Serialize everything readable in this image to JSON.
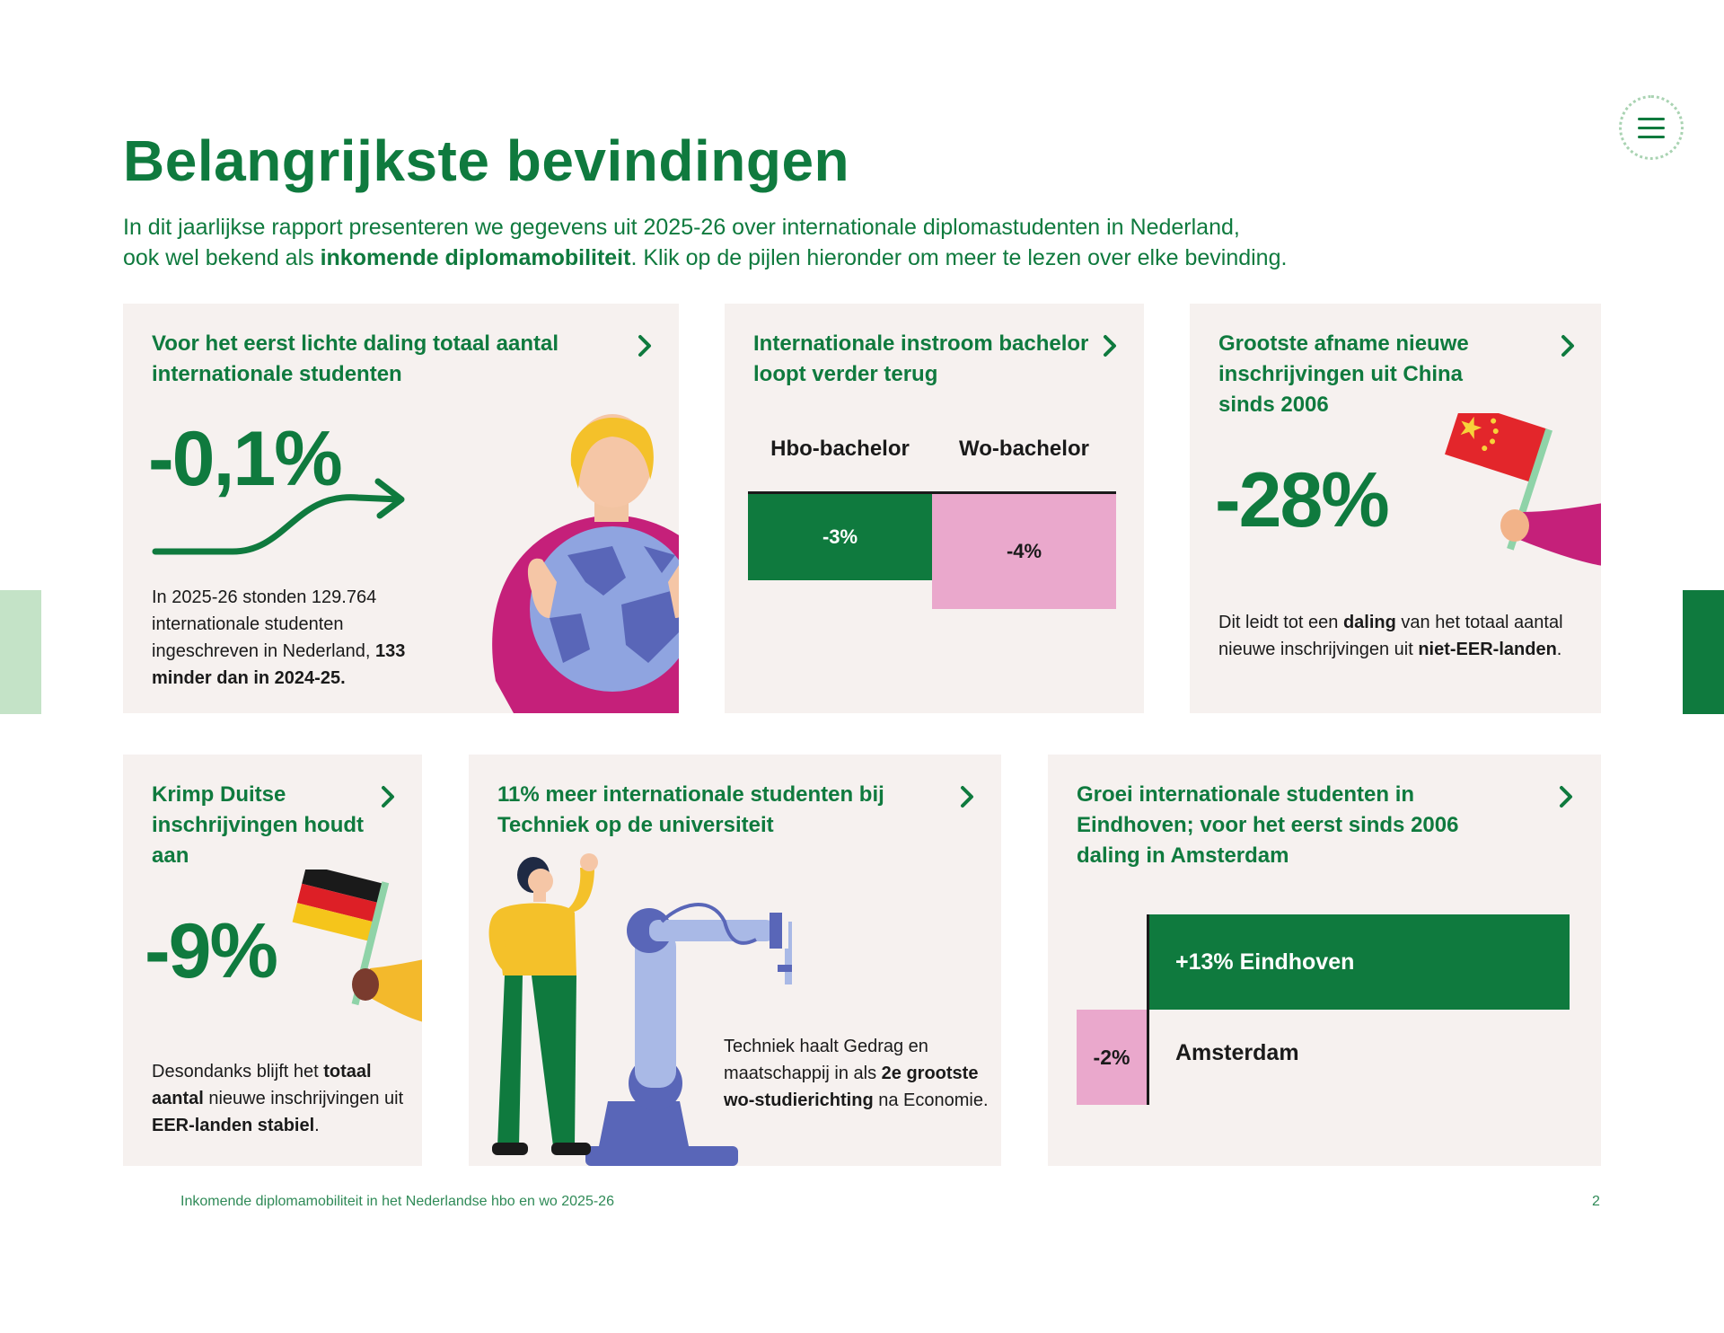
{
  "header": {
    "title": "Belangrijkste bevindingen",
    "intro_line1": "In dit jaarlijkse rapport presenteren we gegevens uit 2025-26 over internationale diplomastudenten in Nederland,",
    "intro_line2_pre": "ook wel bekend als ",
    "intro_line2_bold": "inkomende diplomamobiliteit",
    "intro_line2_post": ". Klik op de pijlen hieronder om meer te lezen over elke bevinding."
  },
  "cards": {
    "total": {
      "title": "Voor het eerst lichte daling totaal aantal internationale studenten",
      "big_value": "-0,1%",
      "desc_plain": "In 2025-26 stonden 129.764 internationale studenten ingeschreven in Nederland, ",
      "desc_bold": "133 minder dan in 2024-25."
    },
    "bachelor": {
      "title": "Internationale instroom bachelor loopt verder terug",
      "col1": "Hbo-bachelor",
      "col2": "Wo-bachelor",
      "val1": "-3%",
      "val2": "-4%"
    },
    "china": {
      "title": "Grootste afname nieuwe inschrijvingen uit China sinds 2006",
      "big_value": "-28%",
      "desc_1": "Dit leidt tot een ",
      "desc_2": "daling",
      "desc_3": " van het totaal aantal nieuwe inschrijvingen uit ",
      "desc_4": "niet-EER-landen",
      "desc_5": "."
    },
    "germany": {
      "title": "Krimp Duitse inschrijvingen houdt aan",
      "big_value": "-9%",
      "desc_1": "Desondanks blijft het ",
      "desc_2": "totaal aantal",
      "desc_3": " nieuwe inschrijvingen uit ",
      "desc_4": "EER-landen stabiel",
      "desc_5": "."
    },
    "techniek": {
      "title": "11% meer internationale studenten bij Techniek op de universiteit",
      "desc_1": "Techniek haalt Gedrag en maatschappij in als ",
      "desc_2": "2e grootste wo-studierichting",
      "desc_3": " na Economie."
    },
    "cities": {
      "title": "Groei internationale studenten in Eindhoven; voor het eerst sinds 2006 daling in Amsterdam",
      "pos_label": "+13% Eindhoven",
      "neg_value": "-2%",
      "neg_label": "Amsterdam"
    }
  },
  "chart_data": [
    {
      "type": "bar",
      "categories": [
        "Hbo-bachelor",
        "Wo-bachelor"
      ],
      "values": [
        -3,
        -4
      ]
    },
    {
      "type": "bar",
      "categories": [
        "Eindhoven",
        "Amsterdam"
      ],
      "values": [
        13,
        -2
      ]
    }
  ],
  "footer": {
    "text": "Inkomende diplomamobiliteit in het Nederlandse hbo en wo 2025-26",
    "page": "2"
  },
  "colors": {
    "brand_green": "#0f7a3e",
    "pink": "#eaa8cc",
    "card_bg": "#f6f1ef",
    "side_tab_light": "#c4e3c7"
  },
  "icons": [
    "menu-icon",
    "chevron-right-icon"
  ]
}
